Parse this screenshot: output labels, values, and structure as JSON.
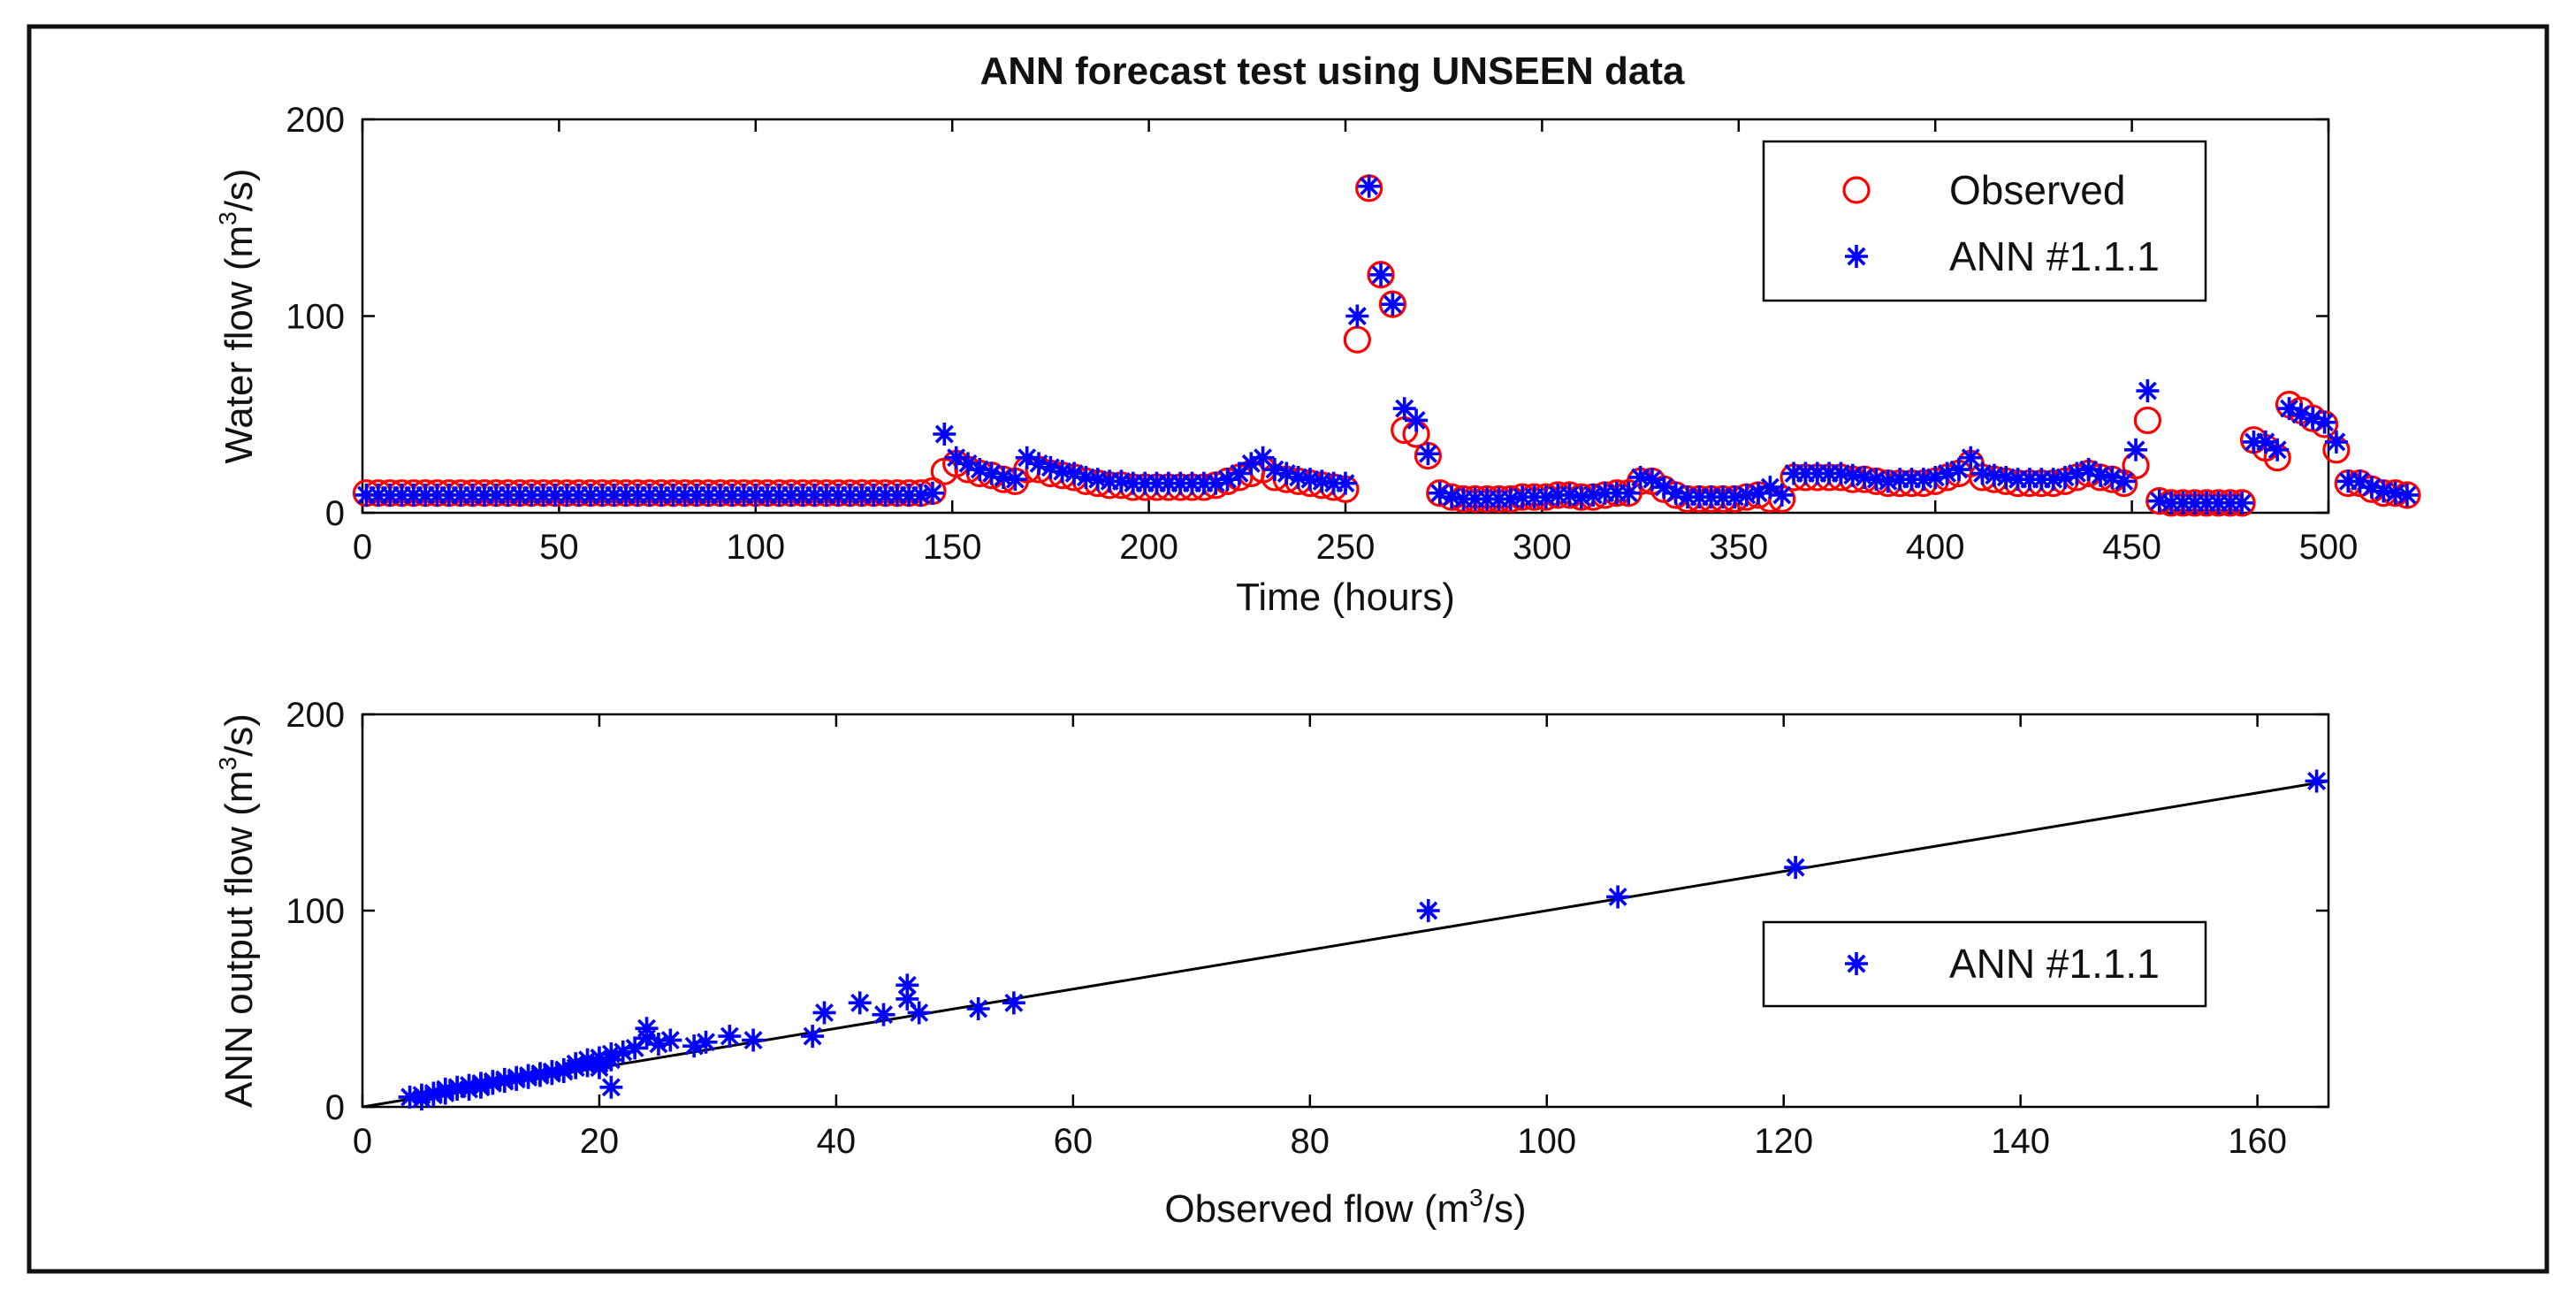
{
  "figure": {
    "title": "ANN forecast test using UNSEEN data"
  },
  "chart_data": [
    {
      "type": "scatter",
      "title": "ANN forecast test using UNSEEN data",
      "xlabel": "Time (hours)",
      "ylabel": {
        "prefix": "Water flow (m",
        "sup": "3",
        "suffix": "/s)"
      },
      "xlim": [
        0,
        500
      ],
      "ylim": [
        0,
        200
      ],
      "xticks": [
        0,
        50,
        100,
        150,
        200,
        250,
        300,
        350,
        400,
        450,
        500
      ],
      "yticks": [
        0,
        100,
        200
      ],
      "legend": {
        "position": "top-right",
        "entries": [
          "Observed",
          "ANN #1.1.1"
        ]
      },
      "colors": {
        "observed": "#ff0000",
        "ann": "#0000ff",
        "axes": "#000000"
      },
      "series": [
        {
          "name": "Observed",
          "marker": "circle",
          "x_start": 1,
          "x_step": 3,
          "y": [
            10,
            10,
            10,
            10,
            10,
            10,
            10,
            10,
            10,
            10,
            10,
            10,
            10,
            10,
            10,
            10,
            10,
            10,
            10,
            10,
            10,
            10,
            10,
            10,
            10,
            10,
            10,
            10,
            10,
            10,
            10,
            10,
            10,
            10,
            10,
            10,
            10,
            10,
            10,
            10,
            10,
            10,
            10,
            10,
            10,
            10,
            10,
            10,
            11,
            21,
            25,
            22,
            20,
            19,
            17,
            16,
            22,
            22,
            20,
            19,
            18,
            16,
            15,
            14,
            14,
            13,
            13,
            13,
            13,
            13,
            13,
            13,
            14,
            16,
            18,
            20,
            22,
            18,
            17,
            16,
            15,
            14,
            13,
            12,
            88,
            165,
            121,
            106,
            42,
            40,
            29,
            10,
            8,
            7,
            7,
            7,
            7,
            7,
            8,
            8,
            8,
            9,
            9,
            8,
            8,
            9,
            10,
            10,
            16,
            16,
            12,
            9,
            7,
            7,
            7,
            7,
            7,
            8,
            9,
            7,
            7,
            18,
            18,
            18,
            18,
            18,
            17,
            17,
            16,
            15,
            15,
            15,
            15,
            16,
            18,
            20,
            25,
            18,
            17,
            16,
            15,
            15,
            15,
            15,
            16,
            18,
            20,
            18,
            17,
            15,
            24,
            47,
            6,
            5,
            5,
            5,
            5,
            5,
            5,
            5,
            37,
            33,
            28,
            55,
            52,
            48,
            45,
            32,
            15,
            15,
            12,
            10,
            10,
            9
          ]
        },
        {
          "name": "ANN #1.1.1",
          "marker": "asterisk",
          "x_start": 1,
          "x_step": 3,
          "y": [
            9,
            9,
            9,
            9,
            9,
            9,
            9,
            9,
            9,
            9,
            9,
            9,
            9,
            9,
            9,
            9,
            9,
            9,
            9,
            9,
            9,
            9,
            9,
            9,
            9,
            9,
            9,
            9,
            9,
            9,
            9,
            9,
            9,
            9,
            9,
            9,
            9,
            9,
            9,
            9,
            9,
            9,
            9,
            9,
            9,
            9,
            9,
            9,
            10,
            40,
            28,
            25,
            22,
            20,
            18,
            17,
            28,
            25,
            23,
            21,
            20,
            18,
            17,
            16,
            16,
            15,
            15,
            15,
            15,
            15,
            15,
            15,
            15,
            17,
            20,
            25,
            28,
            22,
            20,
            18,
            17,
            16,
            15,
            15,
            100,
            166,
            121,
            106,
            53,
            47,
            30,
            10,
            8,
            7,
            7,
            7,
            7,
            7,
            8,
            8,
            8,
            9,
            9,
            8,
            9,
            10,
            10,
            10,
            18,
            17,
            13,
            10,
            8,
            8,
            8,
            8,
            8,
            9,
            10,
            13,
            9,
            20,
            20,
            20,
            20,
            20,
            19,
            18,
            17,
            16,
            17,
            17,
            17,
            18,
            20,
            22,
            28,
            20,
            19,
            18,
            17,
            17,
            17,
            17,
            18,
            20,
            22,
            19,
            18,
            16,
            32,
            62,
            6,
            5,
            5,
            5,
            5,
            5,
            5,
            5,
            36,
            36,
            32,
            53,
            50,
            48,
            46,
            36,
            16,
            16,
            13,
            11,
            10,
            9
          ]
        }
      ]
    },
    {
      "type": "scatter",
      "xlabel": {
        "prefix": "Observed flow (m",
        "sup": "3",
        "suffix": "/s)"
      },
      "ylabel": {
        "prefix": "ANN output flow (m",
        "sup": "3",
        "suffix": "/s)"
      },
      "xlim": [
        0,
        166
      ],
      "ylim": [
        0,
        200
      ],
      "xticks": [
        0,
        20,
        40,
        60,
        80,
        100,
        120,
        140,
        160
      ],
      "yticks": [
        0,
        100,
        200
      ],
      "legend": {
        "position": "right",
        "entries": [
          "ANN #1.1.1"
        ]
      },
      "fit_line": {
        "x": [
          0,
          166
        ],
        "y": [
          0,
          166
        ]
      },
      "colors": {
        "ann": "#0000ff",
        "line": "#000000"
      },
      "series": [
        {
          "name": "ANN #1.1.1",
          "marker": "asterisk",
          "x": [
            4,
            5,
            5,
            6,
            6,
            7,
            7,
            7,
            8,
            8,
            9,
            9,
            10,
            10,
            10,
            11,
            11,
            12,
            12,
            13,
            13,
            14,
            14,
            15,
            15,
            16,
            16,
            17,
            17,
            18,
            18,
            19,
            19,
            20,
            20,
            20,
            21,
            21,
            21,
            22,
            23,
            24,
            24,
            25,
            26,
            28,
            29,
            31,
            33,
            38,
            39,
            42,
            44,
            46,
            46,
            47,
            52,
            55,
            90,
            106,
            121,
            165
          ],
          "y": [
            5,
            4,
            6,
            6,
            7,
            7,
            8,
            9,
            9,
            10,
            9,
            11,
            10,
            12,
            11,
            12,
            13,
            13,
            14,
            14,
            15,
            15,
            16,
            16,
            17,
            17,
            18,
            18,
            19,
            20,
            22,
            21,
            24,
            20,
            22,
            25,
            10,
            24,
            27,
            28,
            30,
            35,
            40,
            32,
            34,
            31,
            33,
            36,
            34,
            36,
            48,
            53,
            47,
            62,
            55,
            48,
            50,
            53,
            100,
            107,
            122,
            166
          ]
        }
      ]
    }
  ]
}
